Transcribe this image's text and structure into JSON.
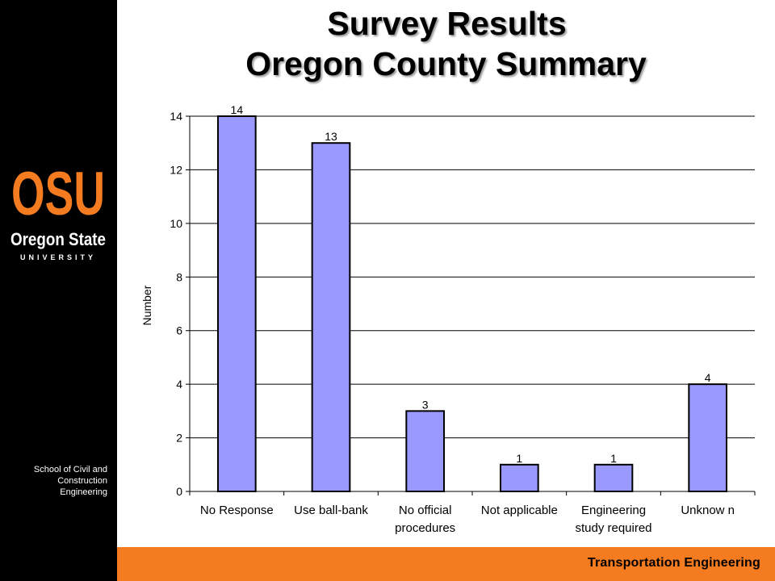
{
  "slide": {
    "title_line1": "Survey Results",
    "title_line2": "Oregon County Summary"
  },
  "sidebar": {
    "logo_main": "OSU",
    "logo_sub": "Oregon State",
    "logo_university": "UNIVERSITY",
    "school_lines": [
      "School of Civil and",
      "Construction",
      "Engineering"
    ]
  },
  "footer": {
    "label": "Transportation Engineering"
  },
  "colors": {
    "bar_fill": "#9999ff",
    "bar_stroke": "#000000",
    "osu_orange": "#f47b20",
    "sidebar": "#000000"
  },
  "chart_data": {
    "type": "bar",
    "categories": [
      [
        "No Response"
      ],
      [
        "Use ball-bank"
      ],
      [
        "No official",
        "procedures"
      ],
      [
        "Not applicable"
      ],
      [
        "Engineering",
        "study required"
      ],
      [
        "Unknow n"
      ]
    ],
    "values": [
      14,
      13,
      3,
      1,
      1,
      4
    ],
    "data_labels": [
      "14",
      "13",
      "3",
      "1",
      "1",
      "4"
    ],
    "ylabel": "Number",
    "xlabel": "",
    "ylim": [
      0,
      14
    ],
    "yticks": [
      0,
      2,
      4,
      6,
      8,
      10,
      12,
      14
    ],
    "grid": true,
    "legend": "none"
  }
}
